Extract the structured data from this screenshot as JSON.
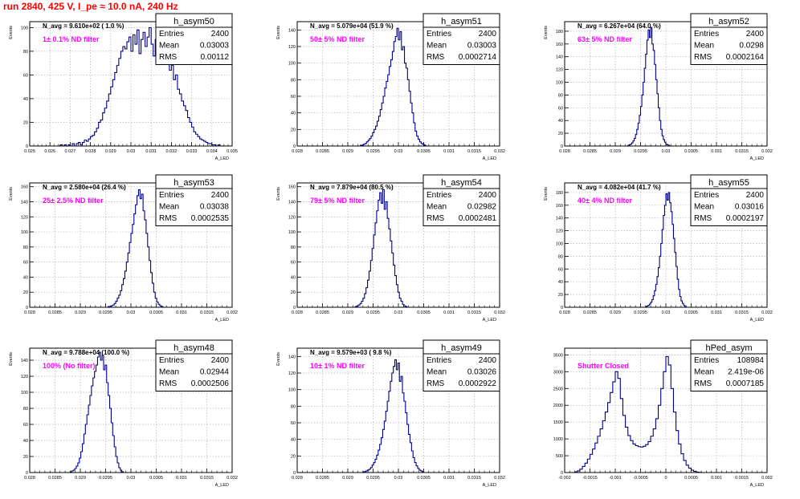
{
  "page": {
    "run_title": "run 2840,   425 V, I_pe ≈ 10.0 nA, 240 Hz"
  },
  "style": {
    "hist_color": "#00008b",
    "label_color": "#ff00ff",
    "title_color": "#ff0000"
  },
  "chart_data": [
    {
      "type": "bar",
      "name": "h_asym50",
      "navg": "N_avg = 9.610e+02 ( 1.0 %)",
      "filter": "1± 0.1% ND filter",
      "stats": [
        [
          "Entries",
          "2400"
        ],
        [
          "Mean",
          "0.03003"
        ],
        [
          "RMS",
          "0.00112"
        ]
      ],
      "xlim": [
        0.025,
        0.035
      ],
      "ylim": [
        0,
        105
      ],
      "xticks": [
        0.025,
        0.026,
        0.027,
        0.028,
        0.029,
        0.03,
        0.031,
        0.032,
        0.033,
        0.034,
        0.035
      ],
      "xtick_labels": [
        "0.025",
        "0.026",
        "0.027",
        "0.028",
        "0.029",
        "0.03",
        "0.031",
        "0.032",
        "0.033",
        "0.034",
        "0.035"
      ],
      "yticks": [
        0,
        20,
        40,
        60,
        80,
        100
      ],
      "ytick_labels": [
        "0",
        "20",
        "40",
        "60",
        "80",
        "100"
      ],
      "xlabel": "A_LED",
      "ylabel": "Events",
      "bins": {
        "x0": 0.0265,
        "dx": 0.0001,
        "counts": [
          1,
          0,
          1,
          0,
          1,
          0,
          2,
          0,
          2,
          3,
          1,
          3,
          5,
          4,
          6,
          8,
          9,
          12,
          15,
          20,
          22,
          28,
          32,
          38,
          44,
          50,
          56,
          62,
          68,
          74,
          80,
          84,
          82,
          88,
          92,
          80,
          94,
          86,
          98,
          78,
          90,
          96,
          84,
          92,
          100,
          86,
          76,
          90,
          80,
          96,
          70,
          86,
          72,
          78,
          64,
          68,
          56,
          60,
          48,
          44,
          38,
          34,
          30,
          24,
          20,
          16,
          12,
          10,
          8,
          6,
          5,
          4,
          3,
          2,
          2,
          1,
          1,
          0,
          1
        ]
      }
    },
    {
      "type": "bar",
      "name": "h_asym51",
      "navg": "N_avg = 5.079e+04 (51.9 %)",
      "filter": "50± 5% ND filter",
      "stats": [
        [
          "Entries",
          "2400"
        ],
        [
          "Mean",
          "0.03003"
        ],
        [
          "RMS",
          "0.0002714"
        ]
      ],
      "xlim": [
        0.028,
        0.032
      ],
      "ylim": [
        0,
        150
      ],
      "xticks": [
        0.028,
        0.0285,
        0.029,
        0.0295,
        0.03,
        0.0305,
        0.031,
        0.0315,
        0.032
      ],
      "xtick_labels": [
        "0.028",
        "0.0285",
        "0.029",
        "0.0295",
        "0.03",
        "0.0305",
        "0.031",
        "0.0315",
        "0.032"
      ],
      "yticks": [
        0,
        20,
        40,
        60,
        80,
        100,
        120,
        140
      ],
      "ytick_labels": [
        "0",
        "20",
        "40",
        "60",
        "80",
        "100",
        "120",
        "140"
      ],
      "xlabel": "A_LED",
      "ylabel": "Events",
      "bins": {
        "x0": 0.02925,
        "dx": 3e-05,
        "counts": [
          1,
          1,
          2,
          3,
          5,
          7,
          9,
          12,
          16,
          20,
          24,
          30,
          36,
          44,
          52,
          60,
          70,
          78,
          86,
          96,
          104,
          114,
          126,
          132,
          142,
          128,
          138,
          116,
          120,
          100,
          94,
          80,
          66,
          52,
          40,
          28,
          18,
          12,
          8,
          5,
          3,
          2,
          1
        ]
      }
    },
    {
      "type": "bar",
      "name": "h_asym52",
      "navg": "N_avg = 6.267e+04 (64.0 %)",
      "filter": "63± 5% ND filter",
      "stats": [
        [
          "Entries",
          "2400"
        ],
        [
          "Mean",
          "0.0298"
        ],
        [
          "RMS",
          "0.0002164"
        ]
      ],
      "xlim": [
        0.028,
        0.032
      ],
      "ylim": [
        0,
        195
      ],
      "xticks": [
        0.028,
        0.0285,
        0.029,
        0.0295,
        0.03,
        0.0305,
        0.031,
        0.0315,
        0.032
      ],
      "xtick_labels": [
        "0.028",
        "0.0285",
        "0.029",
        "0.0295",
        "0.03",
        "0.0305",
        "0.031",
        "0.0315",
        "0.032"
      ],
      "yticks": [
        0,
        20,
        40,
        60,
        80,
        100,
        120,
        140,
        160,
        180
      ],
      "ytick_labels": [
        "0",
        "20",
        "40",
        "60",
        "80",
        "100",
        "120",
        "140",
        "160",
        "180"
      ],
      "xlabel": "A_LED",
      "ylabel": "Events",
      "bins": {
        "x0": 0.02925,
        "dx": 2.5e-05,
        "counts": [
          1,
          2,
          3,
          5,
          8,
          12,
          18,
          26,
          36,
          48,
          62,
          80,
          100,
          122,
          144,
          166,
          182,
          170,
          186,
          160,
          150,
          128,
          104,
          82,
          60,
          40,
          26,
          16,
          10,
          6,
          3,
          2,
          1
        ]
      }
    },
    {
      "type": "bar",
      "name": "h_asym53",
      "navg": "N_avg = 2.580e+04 (26.4 %)",
      "filter": "25± 2.5% ND filter",
      "stats": [
        [
          "Entries",
          "2400"
        ],
        [
          "Mean",
          "0.03038"
        ],
        [
          "RMS",
          "0.0002535"
        ]
      ],
      "xlim": [
        0.028,
        0.032
      ],
      "ylim": [
        0,
        165
      ],
      "xticks": [
        0.028,
        0.0285,
        0.029,
        0.0295,
        0.03,
        0.0305,
        0.031,
        0.0315,
        0.032
      ],
      "xtick_labels": [
        "0.028",
        "0.0285",
        "0.029",
        "0.0295",
        "0.03",
        "0.0305",
        "0.031",
        "0.0315",
        "0.032"
      ],
      "yticks": [
        0,
        20,
        40,
        60,
        80,
        100,
        120,
        140,
        160
      ],
      "ytick_labels": [
        "0",
        "20",
        "40",
        "60",
        "80",
        "100",
        "120",
        "140",
        "160"
      ],
      "xlabel": "A_LED",
      "ylabel": "Events",
      "bins": {
        "x0": 0.02955,
        "dx": 3e-05,
        "counts": [
          1,
          1,
          2,
          3,
          5,
          8,
          12,
          16,
          22,
          30,
          38,
          48,
          60,
          72,
          86,
          98,
          110,
          124,
          136,
          148,
          156,
          144,
          150,
          128,
          116,
          98,
          80,
          62,
          46,
          32,
          20,
          12,
          7,
          4,
          2,
          1
        ]
      }
    },
    {
      "type": "bar",
      "name": "h_asym54",
      "navg": "N_avg = 7.879e+04 (80.5 %)",
      "filter": "79± 5% ND filter",
      "stats": [
        [
          "Entries",
          "2400"
        ],
        [
          "Mean",
          "0.02982"
        ],
        [
          "RMS",
          "0.0002481"
        ]
      ],
      "xlim": [
        0.028,
        0.032
      ],
      "ylim": [
        0,
        165
      ],
      "xticks": [
        0.028,
        0.0285,
        0.029,
        0.0295,
        0.03,
        0.0305,
        0.031,
        0.0315,
        0.032
      ],
      "xtick_labels": [
        "0.028",
        "0.0285",
        "0.029",
        "0.0295",
        "0.03",
        "0.0305",
        "0.031",
        "0.0315",
        "0.032"
      ],
      "yticks": [
        0,
        20,
        40,
        60,
        80,
        100,
        120,
        140,
        160
      ],
      "ytick_labels": [
        "0",
        "20",
        "40",
        "60",
        "80",
        "100",
        "120",
        "140",
        "160"
      ],
      "xlabel": "A_LED",
      "ylabel": "Events",
      "bins": {
        "x0": 0.02915,
        "dx": 3e-05,
        "counts": [
          1,
          2,
          3,
          5,
          8,
          12,
          18,
          26,
          36,
          48,
          62,
          78,
          96,
          112,
          128,
          142,
          152,
          138,
          156,
          130,
          140,
          118,
          104,
          88,
          72,
          56,
          42,
          30,
          20,
          12,
          8,
          4,
          2,
          1
        ]
      }
    },
    {
      "type": "bar",
      "name": "h_asym55",
      "navg": "N_avg = 4.082e+04 (41.7 %)",
      "filter": "40± 4% ND filter",
      "stats": [
        [
          "Entries",
          "2400"
        ],
        [
          "Mean",
          "0.03016"
        ],
        [
          "RMS",
          "0.0002197"
        ]
      ],
      "xlim": [
        0.028,
        0.032
      ],
      "ylim": [
        0,
        195
      ],
      "xticks": [
        0.028,
        0.0285,
        0.029,
        0.0295,
        0.03,
        0.0305,
        0.031,
        0.0315,
        0.032
      ],
      "xtick_labels": [
        "0.028",
        "0.0285",
        "0.029",
        "0.0295",
        "0.03",
        "0.0305",
        "0.031",
        "0.0315",
        "0.032"
      ],
      "yticks": [
        0,
        20,
        40,
        60,
        80,
        100,
        120,
        140,
        160,
        180
      ],
      "ytick_labels": [
        "0",
        "20",
        "40",
        "60",
        "80",
        "100",
        "120",
        "140",
        "160",
        "180"
      ],
      "xlabel": "A_LED",
      "ylabel": "Events",
      "bins": {
        "x0": 0.0296,
        "dx": 2.5e-05,
        "counts": [
          1,
          2,
          3,
          5,
          8,
          12,
          18,
          26,
          36,
          48,
          62,
          80,
          100,
          122,
          144,
          160,
          178,
          168,
          180,
          164,
          150,
          130,
          108,
          86,
          64,
          44,
          28,
          17,
          10,
          6,
          3,
          1
        ]
      }
    },
    {
      "type": "bar",
      "name": "h_asym48",
      "navg": "N_avg = 9.788e+04 (100.0 %)",
      "filter": "100% (No filter)",
      "stats": [
        [
          "Entries",
          "2400"
        ],
        [
          "Mean",
          "0.02944"
        ],
        [
          "RMS",
          "0.0002506"
        ]
      ],
      "xlim": [
        0.028,
        0.032
      ],
      "ylim": [
        0,
        155
      ],
      "xticks": [
        0.028,
        0.0285,
        0.029,
        0.0295,
        0.03,
        0.0305,
        0.031,
        0.0315,
        0.032
      ],
      "xtick_labels": [
        "0.028",
        "0.0285",
        "0.029",
        "0.0295",
        "0.03",
        "0.0305",
        "0.031",
        "0.0315",
        "0.032"
      ],
      "yticks": [
        0,
        20,
        40,
        60,
        80,
        100,
        120,
        140
      ],
      "ytick_labels": [
        "0",
        "20",
        "40",
        "60",
        "80",
        "100",
        "120",
        "140"
      ],
      "xlabel": "A_LED",
      "ylabel": "Events",
      "bins": {
        "x0": 0.0288,
        "dx": 3e-05,
        "counts": [
          1,
          2,
          3,
          5,
          8,
          12,
          18,
          26,
          36,
          48,
          60,
          72,
          84,
          96,
          108,
          118,
          126,
          134,
          144,
          150,
          140,
          146,
          128,
          134,
          112,
          96,
          80,
          62,
          46,
          32,
          20,
          12,
          6,
          3,
          1
        ]
      }
    },
    {
      "type": "bar",
      "name": "h_asym49",
      "navg": "N_avg = 9.579e+03 ( 9.8 %)",
      "filter": "10± 1% ND filter",
      "stats": [
        [
          "Entries",
          "2400"
        ],
        [
          "Mean",
          "0.03026"
        ],
        [
          "RMS",
          "0.0002922"
        ]
      ],
      "xlim": [
        0.028,
        0.032
      ],
      "ylim": [
        0,
        150
      ],
      "xticks": [
        0.028,
        0.0285,
        0.029,
        0.0295,
        0.03,
        0.0305,
        0.031,
        0.0315,
        0.032
      ],
      "xtick_labels": [
        "0.028",
        "0.0285",
        "0.029",
        "0.0295",
        "0.03",
        "0.0305",
        "0.031",
        "0.0315",
        "0.032"
      ],
      "yticks": [
        0,
        20,
        40,
        60,
        80,
        100,
        120,
        140
      ],
      "ytick_labels": [
        "0",
        "20",
        "40",
        "60",
        "80",
        "100",
        "120",
        "140"
      ],
      "xlabel": "A_LED",
      "ylabel": "Events",
      "bins": {
        "x0": 0.0293,
        "dx": 3e-05,
        "counts": [
          1,
          1,
          2,
          3,
          4,
          6,
          9,
          12,
          16,
          21,
          27,
          34,
          42,
          52,
          62,
          74,
          86,
          98,
          110,
          120,
          128,
          136,
          124,
          132,
          110,
          116,
          96,
          86,
          72,
          58,
          46,
          36,
          26,
          18,
          12,
          8,
          5,
          3,
          2,
          1
        ]
      }
    },
    {
      "type": "bar",
      "name": "hPed_asym",
      "navg": "",
      "filter": "Shutter Closed",
      "stats": [
        [
          "Entries",
          "108984"
        ],
        [
          "Mean",
          "2.419e-06"
        ],
        [
          "RMS",
          "0.0007185"
        ]
      ],
      "xlim": [
        -0.002,
        0.002
      ],
      "ylim": [
        0,
        3700
      ],
      "xticks": [
        -0.002,
        -0.0015,
        -0.001,
        -0.0005,
        0,
        0.0005,
        0.001,
        0.0015,
        0.002
      ],
      "xtick_labels": [
        "-0.002",
        "-0.0015",
        "-0.001",
        "-0.0005",
        "0",
        "0.0005",
        "0.001",
        "0.0015",
        "0.002"
      ],
      "yticks": [
        0,
        500,
        1000,
        1500,
        2000,
        2500,
        3000,
        3500
      ],
      "ytick_labels": [
        "0",
        "500",
        "1000",
        "1500",
        "2000",
        "2500",
        "3000",
        "3500"
      ],
      "xlabel": "A_LED",
      "ylabel": "",
      "bins": {
        "x0": -0.0018,
        "dx": 5e-05,
        "counts": [
          20,
          50,
          100,
          180,
          280,
          400,
          540,
          700,
          880,
          1080,
          1300,
          1540,
          1800,
          2080,
          2380,
          2700,
          3000,
          2800,
          2200,
          1700,
          1350,
          1100,
          950,
          850,
          800,
          770,
          760,
          780,
          830,
          920,
          1080,
          1300,
          1600,
          2000,
          2500,
          3000,
          3450,
          3200,
          2500,
          1800,
          1250,
          850,
          560,
          360,
          220,
          130,
          70,
          35,
          15,
          5
        ]
      }
    }
  ]
}
